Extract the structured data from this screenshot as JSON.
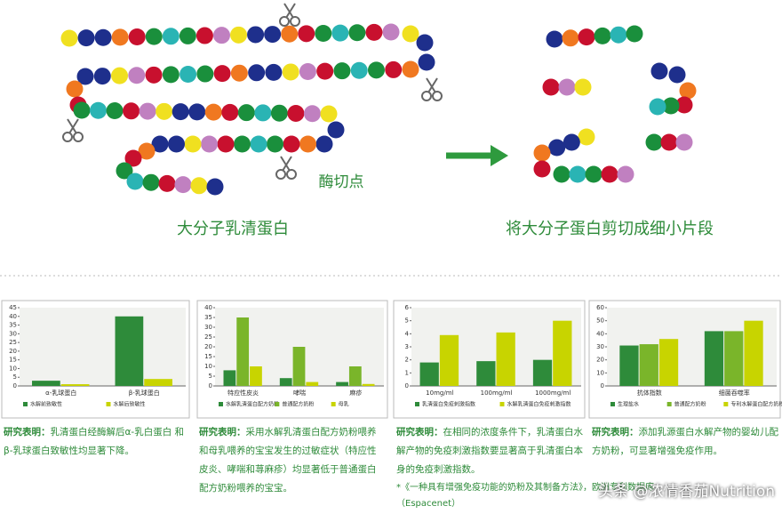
{
  "diagram": {
    "cut_label": "酶切点",
    "left_label": "大分子乳清蛋白",
    "right_label": "将大分子蛋白剪切成细小片段"
  },
  "chart_data": [
    {
      "type": "bar",
      "categories": [
        "α-乳球蛋白",
        "β-乳球蛋白"
      ],
      "series": [
        {
          "name": "水解前致敏性",
          "color": "#2e8b3a",
          "values": [
            3,
            40
          ]
        },
        {
          "name": "水解后致敏性",
          "color": "#c8d400",
          "values": [
            1,
            4
          ]
        }
      ],
      "ylim": [
        0,
        45
      ],
      "yticks": [
        0,
        5,
        10,
        15,
        20,
        25,
        30,
        35,
        40,
        45
      ]
    },
    {
      "type": "bar",
      "categories": [
        "特应性皮炎",
        "哮喘",
        "麻疹"
      ],
      "series": [
        {
          "name": "水解乳清蛋白配方奶粉",
          "color": "#2e8b3a",
          "values": [
            8,
            4,
            2
          ]
        },
        {
          "name": "普通配方奶粉",
          "color": "#7ab52a",
          "values": [
            35,
            20,
            10
          ]
        },
        {
          "name": "母乳",
          "color": "#c8d400",
          "values": [
            10,
            2,
            1
          ]
        }
      ],
      "ylim": [
        0,
        40
      ],
      "yticks": [
        0,
        5,
        10,
        15,
        20,
        25,
        30,
        35,
        40
      ]
    },
    {
      "type": "bar",
      "categories": [
        "10mg/ml",
        "100mg/ml",
        "1000mg/ml"
      ],
      "series": [
        {
          "name": "乳清蛋白免疫刺激指数",
          "color": "#2e8b3a",
          "values": [
            1.8,
            1.9,
            2
          ]
        },
        {
          "name": "水解乳清蛋白免疫刺激指数",
          "color": "#c8d400",
          "values": [
            3.9,
            4.1,
            5
          ]
        }
      ],
      "ylim": [
        0,
        6
      ],
      "yticks": [
        0,
        1,
        2,
        3,
        4,
        5,
        6
      ]
    },
    {
      "type": "bar",
      "categories": [
        "抗体指数",
        "细菌吞噬率"
      ],
      "series": [
        {
          "name": "生理盐水",
          "color": "#2e8b3a",
          "values": [
            31,
            42
          ]
        },
        {
          "name": "普通配方奶粉",
          "color": "#7ab52a",
          "values": [
            32,
            42
          ]
        },
        {
          "name": "专利水解蛋白配方奶粉",
          "color": "#c8d400",
          "values": [
            36,
            50
          ]
        }
      ],
      "ylim": [
        0,
        60
      ],
      "yticks": [
        0,
        10,
        20,
        30,
        40,
        50,
        60
      ]
    }
  ],
  "captions": [
    {
      "label": "研究表明：",
      "text": "乳清蛋白经酶解后α-乳白蛋白 和β-乳球蛋白致敏性均显著下降。"
    },
    {
      "label": "研究表明：",
      "text": "采用水解乳清蛋白配方奶粉喂养和母乳喂养的宝宝发生的过敏症状（特应性皮炎、哮喘和荨麻疹）均显著低于普通蛋白配方奶粉喂养的宝宝。"
    },
    {
      "label": "研究表明：",
      "text": "在相同的浓度条件下，乳清蛋白水解产物的免疫刺激指数要显著高于乳清蛋白本身的免疫刺激指数。"
    },
    {
      "label": "研究表明：",
      "text": "添加乳源蛋白水解产物的婴幼儿配方奶粉，可显著增强免疫作用。"
    }
  ],
  "footnote": "*《一种具有增强免疫功能的奶粉及其制备方法》，欧洲专利数据库（Espacenet）",
  "watermark": "头条 @浓情香茄Nutrition"
}
